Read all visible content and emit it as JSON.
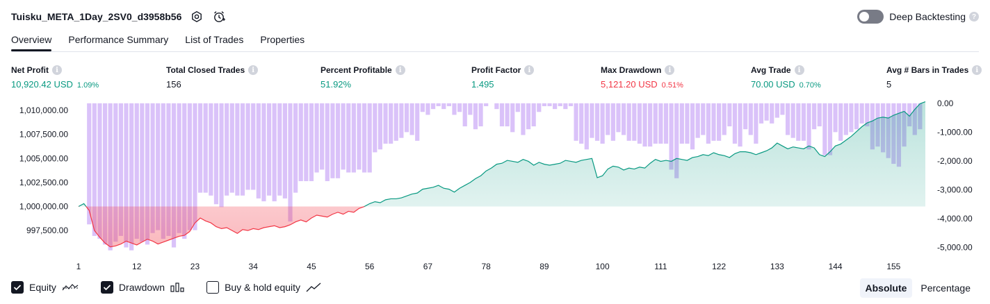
{
  "header": {
    "title": "Tuisku_META_1Day_2SV0_d3958b56",
    "deep_backtesting_label": "Deep Backtesting",
    "deep_backtesting_on": false
  },
  "tabs": [
    {
      "label": "Overview",
      "active": true
    },
    {
      "label": "Performance Summary",
      "active": false
    },
    {
      "label": "List of Trades",
      "active": false
    },
    {
      "label": "Properties",
      "active": false
    }
  ],
  "metrics": [
    {
      "label": "Net Profit",
      "value": "10,920.42 USD",
      "pct": "1.09%",
      "color": "#089981"
    },
    {
      "label": "Total Closed Trades",
      "value": "156",
      "pct": "",
      "color": "#131722"
    },
    {
      "label": "Percent Profitable",
      "value": "51.92%",
      "pct": "",
      "color": "#089981"
    },
    {
      "label": "Profit Factor",
      "value": "1.495",
      "pct": "",
      "color": "#089981"
    },
    {
      "label": "Max Drawdown",
      "value": "5,121.20 USD",
      "pct": "0.51%",
      "color": "#f23645"
    },
    {
      "label": "Avg Trade",
      "value": "70.00 USD",
      "pct": "0.70%",
      "color": "#089981"
    },
    {
      "label": "Avg # Bars in Trades",
      "value": "5",
      "pct": "",
      "color": "#131722"
    }
  ],
  "chart_data": {
    "type": "line",
    "x_ticks": [
      "1",
      "12",
      "23",
      "34",
      "45",
      "56",
      "67",
      "78",
      "89",
      "100",
      "111",
      "122",
      "133",
      "144",
      "155"
    ],
    "left_axis": {
      "ticks": [
        "1,010,000.00",
        "1,007,500.00",
        "1,005,000.00",
        "1,002,500.00",
        "1,000,000.00",
        "997,500.00"
      ],
      "range": [
        995200,
        1010800
      ]
    },
    "right_axis": {
      "ticks": [
        "0.00",
        "-1,000.00",
        "-2,000.00",
        "-3,000.00",
        "-4,000.00",
        "-5,000.00"
      ],
      "range": [
        -5180,
        20
      ]
    },
    "equity_baseline": 1000000,
    "colors": {
      "equity_up": "#089981",
      "equity_down": "#f23645",
      "drawdown": "#c49cf5",
      "axis_text": "#131722"
    },
    "equity": [
      1000000,
      1000300,
      999600,
      997500,
      996800,
      996200,
      995800,
      995900,
      996100,
      996400,
      996200,
      996000,
      996300,
      996600,
      996400,
      996100,
      996300,
      996500,
      996700,
      996900,
      997000,
      997400,
      998300,
      998800,
      998500,
      998300,
      997900,
      997700,
      997800,
      997500,
      997200,
      997600,
      997500,
      997700,
      997600,
      997800,
      997900,
      998000,
      997800,
      997900,
      998100,
      998400,
      998600,
      998400,
      998800,
      999100,
      999000,
      998900,
      999200,
      999400,
      999200,
      999500,
      999400,
      999800,
      1000000,
      1000300,
      1000500,
      1000400,
      1000700,
      1000800,
      1000800,
      1000900,
      1001100,
      1001300,
      1001400,
      1001800,
      1001900,
      1002000,
      1002200,
      1001900,
      1001800,
      1001500,
      1001900,
      1002200,
      1002500,
      1002900,
      1003200,
      1003700,
      1004000,
      1004400,
      1004500,
      1004800,
      1004700,
      1004600,
      1004900,
      1004700,
      1004300,
      1004600,
      1004400,
      1004300,
      1004400,
      1004500,
      1004800,
      1004700,
      1004600,
      1004800,
      1004900,
      1005000,
      1003000,
      1003200,
      1003900,
      1004200,
      1004100,
      1003800,
      1004000,
      1003900,
      1004100,
      1004000,
      1004500,
      1004900,
      1004700,
      1004800,
      1004700,
      1005000,
      1004900,
      1004800,
      1005100,
      1005200,
      1005400,
      1005300,
      1005600,
      1005400,
      1005300,
      1005100,
      1005500,
      1005700,
      1005700,
      1005600,
      1005400,
      1005600,
      1005800,
      1006100,
      1006600,
      1006300,
      1006000,
      1006200,
      1006100,
      1006000,
      1006300,
      1006100,
      1005400,
      1005200,
      1005700,
      1006300,
      1006500,
      1006900,
      1007300,
      1007800,
      1008300,
      1008700,
      1008900,
      1009200,
      1009300,
      1009200,
      1009500,
      1009700,
      1009900,
      1009400,
      1010100,
      1010700,
      1010900
    ],
    "drawdown": [
      0,
      0,
      -4200,
      -4600,
      -4700,
      -4900,
      -5100,
      -4800,
      -4600,
      -5000,
      -5100,
      -4700,
      -4800,
      -4900,
      -4500,
      -4400,
      -4700,
      -4600,
      -5000,
      -4500,
      -4700,
      -4400,
      -4400,
      -3100,
      -3100,
      -3200,
      -3500,
      -3600,
      -3200,
      -3100,
      -3200,
      -3200,
      -3000,
      -3000,
      -3300,
      -3400,
      -3200,
      -3400,
      -3200,
      -3300,
      -4100,
      -3100,
      -2700,
      -2700,
      -2700,
      -2400,
      -2300,
      -2700,
      -2600,
      -2600,
      -2300,
      -2400,
      -2400,
      -2300,
      -2400,
      -2400,
      -1700,
      -1600,
      -1400,
      -1400,
      -1300,
      -1200,
      -1000,
      -1100,
      -1300,
      -300,
      -400,
      -200,
      -100,
      -200,
      -100,
      -400,
      -300,
      -800,
      -400,
      -900,
      -800,
      -100,
      0,
      -200,
      -800,
      -800,
      -1000,
      -300,
      -1100,
      -900,
      -800,
      -300,
      -100,
      -100,
      -200,
      -100,
      -200,
      -100,
      -1300,
      -1400,
      -1600,
      -1200,
      -1300,
      -1400,
      -1100,
      -1300,
      -1000,
      -1100,
      -1300,
      -1300,
      -1400,
      -1500,
      -1500,
      -1400,
      -1400,
      -1400,
      -2300,
      -2600,
      -1400,
      -1400,
      -1600,
      -1200,
      -1100,
      -1400,
      -1300,
      -1300,
      -1100,
      -800,
      -1400,
      -1500,
      -900,
      -1100,
      -1400,
      -700,
      -600,
      -700,
      -500,
      -400,
      -1100,
      -1200,
      -1300,
      -1300,
      -1600,
      -900,
      -800,
      -1800,
      -1800,
      -1000,
      -1300,
      -1100,
      -1000,
      -900,
      -700,
      -800,
      -1600,
      -1500,
      -1700,
      -1900,
      -2100,
      -2200,
      -1500,
      -800,
      -1100,
      -900
    ],
    "buy_hold_visible": false
  },
  "legend": {
    "equity_label": "Equity",
    "drawdown_label": "Drawdown",
    "buyhold_label": "Buy & hold equity",
    "equity_checked": true,
    "drawdown_checked": true,
    "buyhold_checked": false
  },
  "mode": {
    "absolute_label": "Absolute",
    "percentage_label": "Percentage",
    "active": "absolute"
  }
}
